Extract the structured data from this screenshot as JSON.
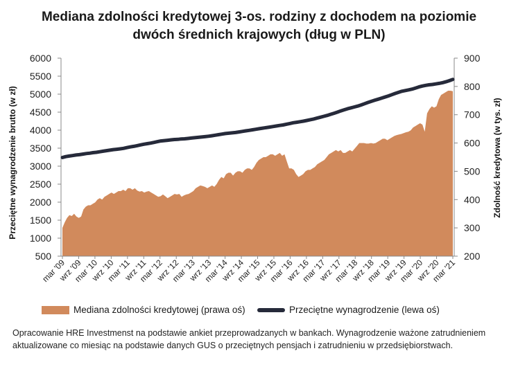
{
  "title_line1": "Mediana zdolności kredytowej 3-os. rodziny z dochodem na poziomie",
  "title_line2": "dwóch średnich krajowych (dług w PLN)",
  "footnote": "Opracowanie HRE Investmenst na podstawie ankiet przeprowadzanych w bankach. Wynagrodzenie ważone zatrudnieniem aktualizowane co miesiąc na podstawie danych GUS o przeciętnych pensjach i zatrudnieniu w przedsiębiorstwach.",
  "legend": {
    "area": "Mediana zdolności kredytowej (prawa oś)",
    "line": "Przeciętne wynagrodzenie (lewa oś)"
  },
  "chart_data": {
    "type": "area",
    "colors": {
      "area": "#d18a5c",
      "line": "#262a3a"
    },
    "ylabel_left": "Przeciętne wynagrodzenie brutto (w zł)",
    "ylabel_right": "Zdolność kredytowa (w tys. zł)",
    "ylim_left": [
      500,
      6000
    ],
    "yticks_left": [
      "6000",
      "5500",
      "5000",
      "4500",
      "4000",
      "3500",
      "3000",
      "2500",
      "2000",
      "1500",
      "1000",
      "500"
    ],
    "ylim_right": [
      200,
      900
    ],
    "yticks_right": [
      "900",
      "800",
      "700",
      "600",
      "500",
      "400",
      "300",
      "200"
    ],
    "grid": false,
    "legend_position": "bottom",
    "x_labels": [
      "mar '09",
      "wrz '09",
      "mar '10",
      "wrz '10",
      "mar '11",
      "wrz '11",
      "mar '12",
      "wrz '12",
      "mar '13",
      "wrz '13",
      "mar '14",
      "wrz '14",
      "mar '15",
      "wrz '15",
      "mar '16",
      "wrz '16",
      "mar '17",
      "wrz '17",
      "mar '18",
      "wrz '18",
      "mar '19",
      "wrz '19",
      "mar '20",
      "wrz '20",
      "mar '21"
    ],
    "series": [
      {
        "name": "Mediana zdolności kredytowej (prawa oś)",
        "axis": "right",
        "values": [
          300,
          320,
          335,
          345,
          342,
          350,
          340,
          335,
          340,
          365,
          375,
          380,
          380,
          385,
          390,
          400,
          405,
          400,
          410,
          415,
          420,
          425,
          420,
          425,
          430,
          430,
          435,
          430,
          440,
          440,
          435,
          440,
          432,
          428,
          430,
          425,
          428,
          430,
          425,
          420,
          415,
          410,
          412,
          418,
          412,
          405,
          410,
          415,
          420,
          418,
          420,
          410,
          415,
          418,
          420,
          425,
          430,
          440,
          445,
          450,
          448,
          445,
          440,
          445,
          450,
          445,
          455,
          470,
          480,
          475,
          490,
          495,
          495,
          485,
          495,
          500,
          500,
          495,
          505,
          510,
          510,
          505,
          515,
          530,
          540,
          545,
          550,
          550,
          555,
          560,
          560,
          555,
          560,
          565,
          555,
          560,
          535,
          510,
          510,
          505,
          490,
          480,
          485,
          490,
          500,
          505,
          505,
          510,
          515,
          525,
          530,
          535,
          540,
          550,
          560,
          565,
          570,
          575,
          570,
          575,
          565,
          565,
          570,
          575,
          570,
          580,
          590,
          600,
          600,
          600,
          598,
          598,
          600,
          598,
          600,
          605,
          610,
          615,
          615,
          610,
          615,
          620,
          625,
          628,
          630,
          632,
          635,
          638,
          640,
          645,
          655,
          660,
          665,
          670,
          665,
          640,
          705,
          720,
          730,
          725,
          730,
          755,
          770,
          775,
          780,
          785,
          785,
          783
        ]
      },
      {
        "name": "Przeciętne wynagrodzenie (lewa oś)",
        "axis": "left",
        "values": [
          3240,
          3265,
          3280,
          3295,
          3310,
          3320,
          3335,
          3350,
          3360,
          3375,
          3385,
          3400,
          3415,
          3430,
          3445,
          3460,
          3470,
          3480,
          3495,
          3515,
          3535,
          3550,
          3570,
          3590,
          3610,
          3625,
          3640,
          3660,
          3680,
          3700,
          3710,
          3720,
          3730,
          3740,
          3745,
          3755,
          3760,
          3770,
          3780,
          3790,
          3800,
          3810,
          3820,
          3830,
          3845,
          3860,
          3875,
          3890,
          3905,
          3915,
          3925,
          3935,
          3950,
          3965,
          3980,
          3995,
          4010,
          4025,
          4040,
          4055,
          4070,
          4085,
          4100,
          4115,
          4130,
          4145,
          4165,
          4185,
          4205,
          4220,
          4235,
          4250,
          4270,
          4290,
          4310,
          4335,
          4360,
          4385,
          4410,
          4440,
          4470,
          4500,
          4535,
          4565,
          4595,
          4620,
          4645,
          4670,
          4700,
          4735,
          4770,
          4800,
          4830,
          4860,
          4890,
          4920,
          4950,
          4985,
          5020,
          5050,
          5080,
          5100,
          5120,
          5140,
          5170,
          5200,
          5225,
          5245,
          5260,
          5270,
          5285,
          5300,
          5320,
          5345,
          5375,
          5410
        ]
      }
    ]
  }
}
